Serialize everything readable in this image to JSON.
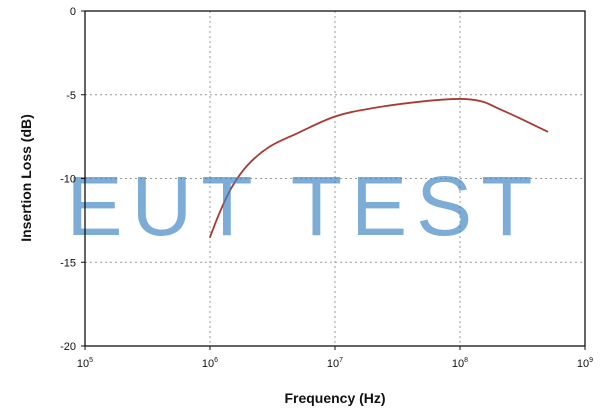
{
  "chart_data": {
    "type": "line",
    "xlabel": "Frequency (Hz)",
    "ylabel": "Insertion Loss (dB)",
    "x_scale": "log",
    "xlim": [
      100000,
      1000000000
    ],
    "ylim": [
      -20,
      0
    ],
    "grid": true,
    "x_ticks": [
      {
        "value": 100000,
        "base": "10",
        "exp": "5"
      },
      {
        "value": 1000000,
        "base": "10",
        "exp": "6"
      },
      {
        "value": 10000000,
        "base": "10",
        "exp": "7"
      },
      {
        "value": 100000000,
        "base": "10",
        "exp": "8"
      },
      {
        "value": 1000000000,
        "base": "10",
        "exp": "9"
      }
    ],
    "y_ticks": [
      {
        "value": 0,
        "label": "0"
      },
      {
        "value": -5,
        "label": "-5"
      },
      {
        "value": -10,
        "label": "-10"
      },
      {
        "value": -15,
        "label": "-15"
      },
      {
        "value": -20,
        "label": "-20"
      }
    ],
    "series": [
      {
        "color": "#a83a36",
        "x": [
          1000000,
          1200000,
          1500000,
          2000000,
          3000000,
          5000000,
          10000000,
          20000000,
          50000000,
          100000000,
          150000000,
          200000000,
          300000000,
          500000000
        ],
        "y": [
          -13.5,
          -12.0,
          -10.5,
          -9.2,
          -8.1,
          -7.3,
          -6.3,
          -5.8,
          -5.4,
          -5.25,
          -5.4,
          -5.8,
          -6.4,
          -7.2
        ]
      }
    ]
  },
  "watermark": {
    "text": "EUT TEST",
    "color": "#3f86c3"
  }
}
